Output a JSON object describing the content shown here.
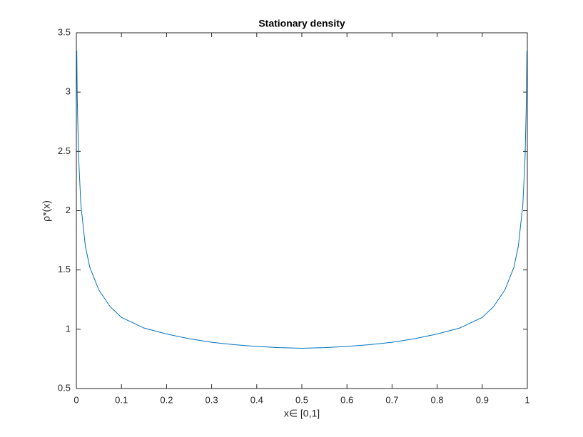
{
  "chart_data": {
    "type": "line",
    "title": "Stationary density",
    "x_label": "x∈ [0,1]",
    "y_label": "ρ*(x)",
    "x": [
      0.001,
      0.002,
      0.005,
      0.01,
      0.02,
      0.03,
      0.05,
      0.075,
      0.1,
      0.15,
      0.2,
      0.25,
      0.3,
      0.35,
      0.4,
      0.45,
      0.5,
      0.55,
      0.6,
      0.65,
      0.7,
      0.75,
      0.8,
      0.85,
      0.9,
      0.925,
      0.95,
      0.97,
      0.98,
      0.99,
      0.995,
      0.998,
      0.999
    ],
    "series": [
      {
        "color": "#0072bd",
        "values": [
          3.35,
          2.95,
          2.45,
          2.05,
          1.7,
          1.52,
          1.33,
          1.19,
          1.1,
          1.01,
          0.96,
          0.92,
          0.89,
          0.87,
          0.855,
          0.845,
          0.84,
          0.845,
          0.855,
          0.87,
          0.89,
          0.92,
          0.96,
          1.01,
          1.1,
          1.19,
          1.33,
          1.52,
          1.7,
          2.05,
          2.45,
          2.95,
          3.35
        ]
      }
    ],
    "xlim": [
      0,
      1
    ],
    "ylim": [
      0.5,
      3.5
    ],
    "xticks": [
      0,
      0.1,
      0.2,
      0.3,
      0.4,
      0.5,
      0.6,
      0.7,
      0.8,
      0.9,
      1
    ],
    "yticks": [
      0.5,
      1,
      1.5,
      2,
      2.5,
      3,
      3.5
    ]
  }
}
